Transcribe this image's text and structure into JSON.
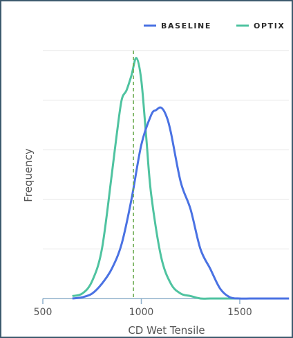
{
  "chart_data": {
    "type": "line",
    "xlabel": "CD Wet Tensile",
    "ylabel": "Frequency",
    "xlim": [
      500,
      1750
    ],
    "ylim": [
      0,
      1.0
    ],
    "x_ticks": [
      500,
      1000,
      1500
    ],
    "x_tick_labels": [
      "500",
      "1000",
      "1500"
    ],
    "y_gridlines": 5,
    "grid": true,
    "legend_position": "top-right",
    "reference_line": {
      "x": 960,
      "style": "dashed",
      "color": "#66a84a"
    },
    "series": [
      {
        "name": "BASELINE",
        "color": "#4a72e3",
        "x": [
          650,
          700,
          750,
          800,
          850,
          900,
          950,
          1000,
          1050,
          1075,
          1100,
          1125,
          1150,
          1200,
          1250,
          1300,
          1350,
          1400,
          1450,
          1500,
          1550,
          1600,
          1650,
          1700,
          1750
        ],
        "y": [
          0.0,
          0.005,
          0.02,
          0.06,
          0.12,
          0.22,
          0.4,
          0.62,
          0.74,
          0.76,
          0.77,
          0.74,
          0.67,
          0.47,
          0.36,
          0.2,
          0.12,
          0.04,
          0.005,
          0.0,
          0.0,
          0.0,
          0.0,
          0.0,
          0.0
        ]
      },
      {
        "name": "OPTIX",
        "color": "#4fc3a0",
        "x": [
          650,
          700,
          750,
          800,
          850,
          875,
          900,
          925,
          950,
          975,
          1000,
          1025,
          1050,
          1100,
          1150,
          1200,
          1250,
          1300,
          1350,
          1400,
          1450,
          1500
        ],
        "y": [
          0.01,
          0.02,
          0.07,
          0.2,
          0.5,
          0.66,
          0.8,
          0.84,
          0.9,
          0.97,
          0.88,
          0.65,
          0.42,
          0.17,
          0.06,
          0.02,
          0.01,
          0.0,
          0.0,
          0.0,
          0.0,
          0.0
        ]
      }
    ]
  }
}
